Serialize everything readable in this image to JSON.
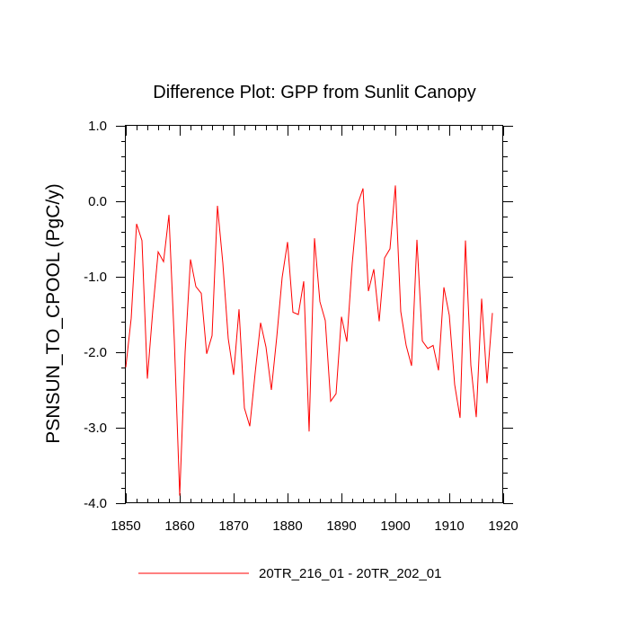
{
  "chart_data": {
    "type": "line",
    "title": "Difference Plot: GPP from Sunlit Canopy",
    "xlabel": "",
    "ylabel": "PSNSUN_TO_CPOOL  (PgC/y)",
    "xlim": [
      1850,
      1920
    ],
    "ylim": [
      -4.0,
      1.0
    ],
    "x_ticks": [
      1850,
      1860,
      1870,
      1880,
      1890,
      1900,
      1910,
      1920
    ],
    "x_tick_labels": [
      "1850",
      "1860",
      "1870",
      "1880",
      "1890",
      "1900",
      "1910",
      "1920"
    ],
    "y_ticks": [
      -4.0,
      -3.0,
      -2.0,
      -1.0,
      0.0,
      1.0
    ],
    "y_tick_labels": [
      "-4.0",
      "-3.0",
      "-2.0",
      "-1.0",
      "0.0",
      "1.0"
    ],
    "grid": false,
    "legend_position": "bottom",
    "series": [
      {
        "name": "20TR_216_01 - 20TR_202_01",
        "color": "#ff0000",
        "x": [
          1850,
          1851,
          1852,
          1853,
          1854,
          1855,
          1856,
          1857,
          1858,
          1859,
          1860,
          1861,
          1862,
          1863,
          1864,
          1865,
          1866,
          1867,
          1868,
          1869,
          1870,
          1871,
          1872,
          1873,
          1874,
          1875,
          1876,
          1877,
          1878,
          1879,
          1880,
          1881,
          1882,
          1883,
          1884,
          1885,
          1886,
          1887,
          1888,
          1889,
          1890,
          1891,
          1892,
          1893,
          1894,
          1895,
          1896,
          1897,
          1898,
          1899,
          1900,
          1901,
          1902,
          1903,
          1904,
          1905,
          1906,
          1907,
          1908,
          1909,
          1910,
          1911,
          1912,
          1913,
          1914,
          1915,
          1916,
          1917,
          1918
        ],
        "values": [
          -2.2,
          -1.55,
          -0.3,
          -0.52,
          -2.35,
          -1.45,
          -0.67,
          -0.8,
          -0.18,
          -1.85,
          -3.9,
          -2.0,
          -0.77,
          -1.13,
          -1.22,
          -2.02,
          -1.78,
          -0.06,
          -0.82,
          -1.82,
          -2.3,
          -1.43,
          -2.74,
          -2.98,
          -2.27,
          -1.61,
          -1.93,
          -2.5,
          -1.8,
          -1.01,
          -0.54,
          -1.47,
          -1.5,
          -1.06,
          -3.05,
          -0.49,
          -1.33,
          -1.58,
          -2.65,
          -2.55,
          -1.53,
          -1.86,
          -0.82,
          -0.04,
          0.17,
          -1.19,
          -0.9,
          -1.59,
          -0.75,
          -0.63,
          0.21,
          -1.46,
          -1.91,
          -2.18,
          -0.51,
          -1.85,
          -1.95,
          -1.91,
          -2.24,
          -1.14,
          -1.51,
          -2.43,
          -2.87,
          -0.52,
          -2.17,
          -2.86,
          -1.29,
          -2.41,
          -1.48
        ]
      }
    ]
  }
}
